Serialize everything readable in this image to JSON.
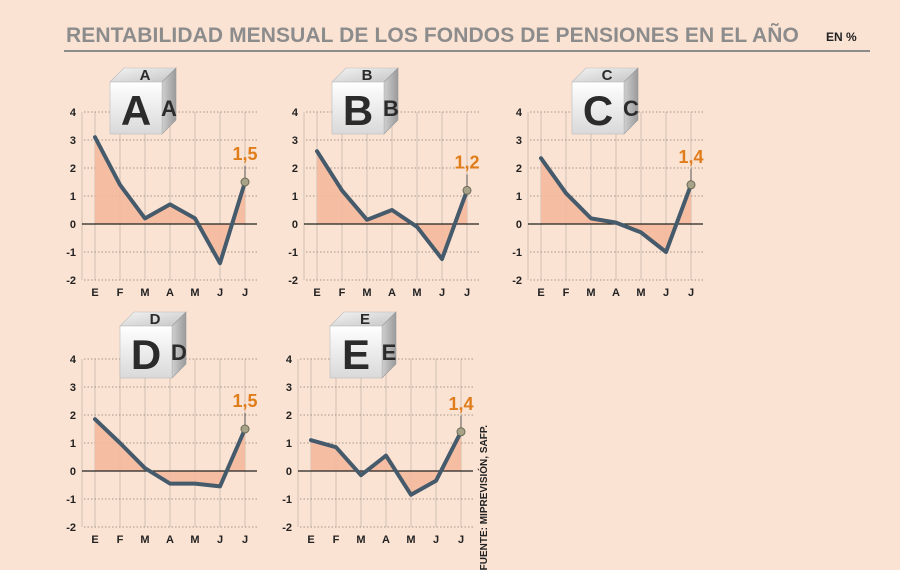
{
  "header": {
    "title": "RENTABILIDAD MENSUAL DE LOS FONDOS DE PENSIONES EN EL AÑO",
    "unit": "EN %"
  },
  "source": "FUENTE: MIPREVISIÓN, SAFP.",
  "colors": {
    "line": "#455a6b",
    "area": "#f4b99d",
    "label": "#e07d1b",
    "marker": "#a8a288",
    "grid": "#c8b8aa"
  },
  "chart_data": [
    {
      "type": "area",
      "fund": "A",
      "categories": [
        "E",
        "F",
        "M",
        "A",
        "M",
        "J",
        "J"
      ],
      "values": [
        3.1,
        1.4,
        0.2,
        0.7,
        0.2,
        -1.4,
        1.5
      ],
      "last_label": "1,5",
      "ylim": [
        -2,
        4
      ],
      "yticks": [
        "4",
        "3",
        "2",
        "1",
        "0",
        "-1",
        "-2"
      ],
      "grid": true
    },
    {
      "type": "area",
      "fund": "B",
      "categories": [
        "E",
        "F",
        "M",
        "A",
        "M",
        "J",
        "J"
      ],
      "values": [
        2.6,
        1.2,
        0.15,
        0.5,
        -0.1,
        -1.25,
        1.2
      ],
      "last_label": "1,2",
      "ylim": [
        -2,
        4
      ],
      "yticks": [
        "4",
        "3",
        "2",
        "1",
        "0",
        "-1",
        "-2"
      ],
      "grid": true
    },
    {
      "type": "area",
      "fund": "C",
      "categories": [
        "E",
        "F",
        "M",
        "A",
        "M",
        "J",
        "J"
      ],
      "values": [
        2.35,
        1.1,
        0.2,
        0.05,
        -0.3,
        -1.0,
        1.4
      ],
      "last_label": "1,4",
      "ylim": [
        -2,
        4
      ],
      "yticks": [
        "4",
        "3",
        "2",
        "1",
        "0",
        "-1",
        "-2"
      ],
      "grid": true
    },
    {
      "type": "area",
      "fund": "D",
      "categories": [
        "E",
        "F",
        "M",
        "A",
        "M",
        "J",
        "J"
      ],
      "values": [
        1.85,
        1.0,
        0.1,
        -0.45,
        -0.45,
        -0.55,
        1.5
      ],
      "last_label": "1,5",
      "ylim": [
        -2,
        4
      ],
      "yticks": [
        "4",
        "3",
        "2",
        "1",
        "0",
        "-1",
        "-2"
      ],
      "grid": true
    },
    {
      "type": "area",
      "fund": "E",
      "categories": [
        "E",
        "F",
        "M",
        "A",
        "M",
        "J",
        "J"
      ],
      "values": [
        1.1,
        0.85,
        -0.15,
        0.55,
        -0.85,
        -0.35,
        1.4
      ],
      "last_label": "1,4",
      "ylim": [
        -2,
        4
      ],
      "yticks": [
        "4",
        "3",
        "2",
        "1",
        "0",
        "-1",
        "-2"
      ],
      "grid": true
    }
  ]
}
